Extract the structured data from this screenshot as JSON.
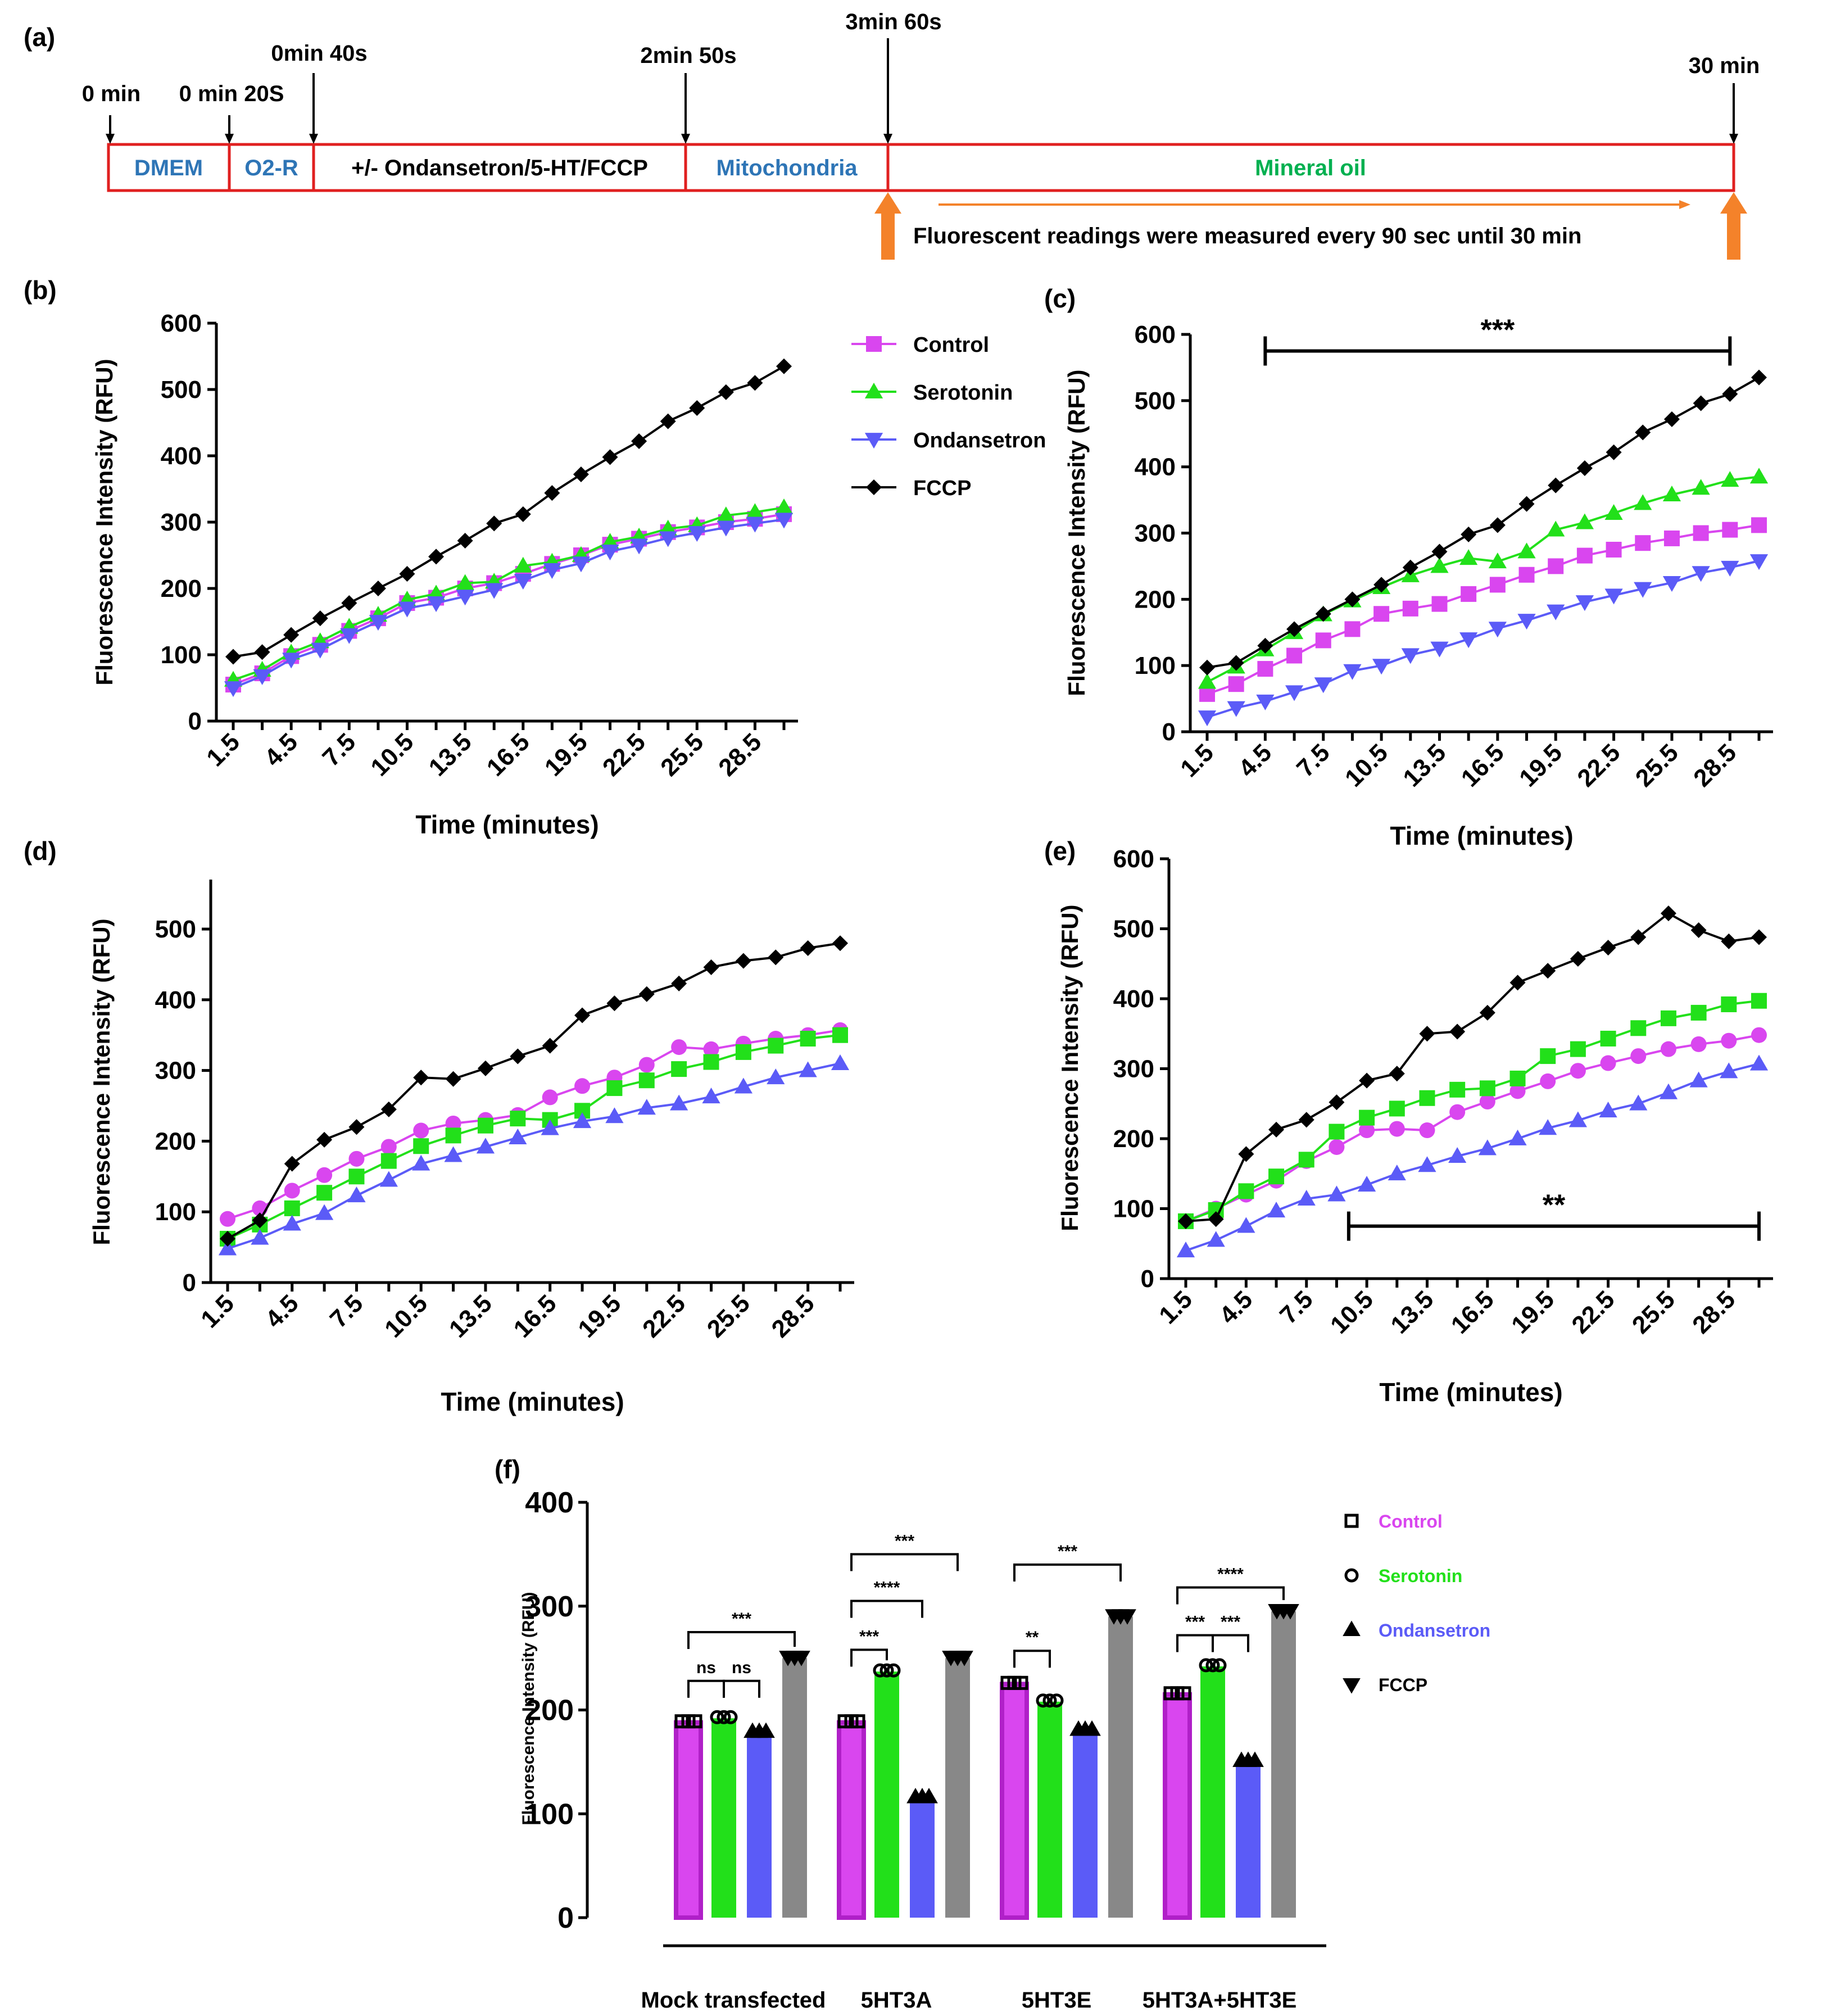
{
  "panel_labels": [
    "(a)",
    "(b)",
    "(c)",
    "(d)",
    "(e)",
    "(f)"
  ],
  "timeline": {
    "markers": [
      {
        "label": "0 min"
      },
      {
        "label": "0 min 20S"
      },
      {
        "label": "0min 40s"
      },
      {
        "label": "2min 50s"
      },
      {
        "label": "3min 60s"
      },
      {
        "label": "30 min"
      }
    ],
    "segments": [
      {
        "label": "DMEM",
        "color": "#2E75B6"
      },
      {
        "label": "O2-R",
        "color": "#2E75B6"
      },
      {
        "label": "+/- Ondansetron/5-HT/FCCP",
        "color": "#000000"
      },
      {
        "label": "Mitochondria",
        "color": "#2E75B6"
      },
      {
        "label": "Mineral oil",
        "color": "#00B050"
      }
    ],
    "note": "Fluorescent readings were measured every 90 sec until 30 min",
    "box_color": "#E02020",
    "arrow_color": "#F4822A"
  },
  "legend_bcde": {
    "items": [
      {
        "name": "Control",
        "color": "#D946EF",
        "marker": "square"
      },
      {
        "name": "Serotonin",
        "color": "#22E01A",
        "marker": "triangle"
      },
      {
        "name": "Ondansetron",
        "color": "#5B5BF7",
        "marker": "triangle-down"
      },
      {
        "name": "FCCP",
        "color": "#000000",
        "marker": "diamond"
      }
    ]
  },
  "legend_f": {
    "items": [
      {
        "name": "Control",
        "color": "#D946EF",
        "marker": "square"
      },
      {
        "name": "Serotonin",
        "color": "#22E01A",
        "marker": "circle"
      },
      {
        "name": "Ondansetron",
        "color": "#5B5BF7",
        "marker": "triangle"
      },
      {
        "name": "FCCP",
        "color": "#000000",
        "marker": "triangle-down"
      }
    ]
  },
  "chart_data": [
    {
      "panel": "(b)",
      "type": "line",
      "xlabel": "Time (minutes)",
      "ylabel": "Fluorescence Intensity (RFU)",
      "ylim": [
        0,
        600
      ],
      "yticks": [
        0,
        100,
        200,
        300,
        400,
        500,
        600
      ],
      "xtick_labels": [
        "1.5",
        "4.5",
        "7.5",
        "10.5",
        "13.5",
        "16.5",
        "19.5",
        "22.5",
        "25.5",
        "28.5"
      ],
      "x": [
        1.5,
        3,
        4.5,
        6,
        7.5,
        9,
        10.5,
        12,
        13.5,
        15,
        16.5,
        18,
        19.5,
        21,
        22.5,
        24,
        25.5,
        27,
        28.5,
        30
      ],
      "series": [
        {
          "name": "Control",
          "color": "#D946EF",
          "marker": "square",
          "values": [
            55,
            72,
            98,
            115,
            136,
            155,
            178,
            186,
            200,
            208,
            222,
            237,
            250,
            266,
            275,
            285,
            292,
            300,
            305,
            312
          ]
        },
        {
          "name": "Serotonin",
          "color": "#22E01A",
          "marker": "triangle",
          "values": [
            62,
            77,
            103,
            120,
            142,
            160,
            183,
            192,
            208,
            210,
            234,
            240,
            250,
            270,
            278,
            290,
            295,
            310,
            315,
            322
          ]
        },
        {
          "name": "Ondansetron",
          "color": "#5B5BF7",
          "marker": "triangle-down",
          "values": [
            50,
            68,
            93,
            108,
            130,
            150,
            170,
            178,
            188,
            198,
            212,
            228,
            238,
            256,
            265,
            276,
            284,
            292,
            298,
            304
          ]
        },
        {
          "name": "FCCP",
          "color": "#000000",
          "marker": "diamond",
          "values": [
            97,
            104,
            130,
            155,
            178,
            200,
            222,
            248,
            272,
            298,
            312,
            344,
            372,
            398,
            422,
            452,
            472,
            496,
            510,
            535
          ]
        }
      ]
    },
    {
      "panel": "(c)",
      "type": "line",
      "xlabel": "Time (minutes)",
      "ylabel": "Fluorescence Intensity (RFU)",
      "ylim": [
        0,
        600
      ],
      "yticks": [
        0,
        100,
        200,
        300,
        400,
        500,
        600
      ],
      "xtick_labels": [
        "1.5",
        "4.5",
        "7.5",
        "10.5",
        "13.5",
        "16.5",
        "19.5",
        "22.5",
        "25.5",
        "28.5"
      ],
      "x": [
        1.5,
        3,
        4.5,
        6,
        7.5,
        9,
        10.5,
        12,
        13.5,
        15,
        16.5,
        18,
        19.5,
        21,
        22.5,
        24,
        25.5,
        27,
        28.5,
        30
      ],
      "significance": {
        "label": "***",
        "from": 4.5,
        "to": 28.5,
        "y": 575
      },
      "series": [
        {
          "name": "Control",
          "color": "#D946EF",
          "marker": "square",
          "values": [
            57,
            72,
            95,
            115,
            138,
            155,
            178,
            186,
            193,
            208,
            222,
            237,
            250,
            266,
            275,
            285,
            292,
            300,
            305,
            312
          ]
        },
        {
          "name": "Serotonin",
          "color": "#22E01A",
          "marker": "triangle",
          "values": [
            75,
            98,
            124,
            150,
            177,
            198,
            218,
            236,
            250,
            262,
            257,
            272,
            305,
            316,
            330,
            345,
            358,
            368,
            380,
            385
          ]
        },
        {
          "name": "Ondansetron",
          "color": "#5B5BF7",
          "marker": "triangle-down",
          "values": [
            22,
            36,
            46,
            60,
            72,
            92,
            100,
            116,
            126,
            140,
            156,
            168,
            182,
            196,
            206,
            216,
            225,
            240,
            248,
            258
          ]
        },
        {
          "name": "FCCP",
          "color": "#000000",
          "marker": "diamond",
          "values": [
            97,
            104,
            130,
            155,
            178,
            200,
            222,
            248,
            272,
            298,
            312,
            344,
            372,
            398,
            422,
            452,
            472,
            496,
            510,
            535
          ]
        }
      ]
    },
    {
      "panel": "(d)",
      "type": "line",
      "xlabel": "Time (minutes)",
      "ylabel": "Fluorescence Intensity (RFU)",
      "ylim": [
        0,
        570
      ],
      "yticks": [
        0,
        100,
        200,
        300,
        400,
        500
      ],
      "xtick_labels": [
        "1.5",
        "4.5",
        "7.5",
        "10.5",
        "13.5",
        "16.5",
        "19.5",
        "22.5",
        "25.5",
        "28.5"
      ],
      "x": [
        1.5,
        3,
        4.5,
        6,
        7.5,
        9,
        10.5,
        12,
        13.5,
        15,
        16.5,
        18,
        19.5,
        21,
        22.5,
        24,
        25.5,
        27,
        28.5,
        30
      ],
      "series": [
        {
          "name": "Control",
          "color": "#D946EF",
          "marker": "circle",
          "values": [
            90,
            105,
            130,
            152,
            175,
            192,
            215,
            225,
            230,
            237,
            262,
            278,
            290,
            308,
            333,
            330,
            338,
            345,
            350,
            357
          ]
        },
        {
          "name": "Serotonin",
          "color": "#22E01A",
          "marker": "square",
          "values": [
            62,
            82,
            105,
            127,
            150,
            172,
            193,
            208,
            222,
            232,
            230,
            243,
            275,
            286,
            302,
            312,
            326,
            335,
            345,
            350
          ]
        },
        {
          "name": "Ondansetron",
          "color": "#5B5BF7",
          "marker": "triangle",
          "values": [
            48,
            63,
            83,
            98,
            123,
            145,
            168,
            180,
            192,
            205,
            218,
            228,
            235,
            247,
            253,
            263,
            277,
            290,
            300,
            310
          ]
        },
        {
          "name": "FCCP",
          "color": "#000000",
          "marker": "diamond",
          "values": [
            62,
            88,
            168,
            202,
            220,
            245,
            290,
            288,
            303,
            320,
            335,
            378,
            395,
            408,
            423,
            446,
            455,
            460,
            473,
            480
          ]
        }
      ]
    },
    {
      "panel": "(e)",
      "type": "line",
      "xlabel": "Time (minutes)",
      "ylabel": "Fluorescence Intensity (RFU)",
      "ylim": [
        0,
        600
      ],
      "yticks": [
        0,
        100,
        200,
        300,
        400,
        500,
        600
      ],
      "xtick_labels": [
        "1.5",
        "4.5",
        "7.5",
        "10.5",
        "13.5",
        "16.5",
        "19.5",
        "22.5",
        "25.5",
        "28.5"
      ],
      "x": [
        1.5,
        3,
        4.5,
        6,
        7.5,
        9,
        10.5,
        12,
        13.5,
        15,
        16.5,
        18,
        19.5,
        21,
        22.5,
        24,
        25.5,
        27,
        28.5,
        30
      ],
      "significance": {
        "label": "**",
        "from": 9.6,
        "to": 30,
        "y": 75
      },
      "series": [
        {
          "name": "Control",
          "color": "#D946EF",
          "marker": "circle",
          "values": [
            82,
            100,
            120,
            140,
            168,
            188,
            212,
            214,
            212,
            238,
            253,
            268,
            282,
            297,
            308,
            318,
            328,
            335,
            340,
            348
          ]
        },
        {
          "name": "Serotonin",
          "color": "#22E01A",
          "marker": "square",
          "values": [
            82,
            98,
            125,
            146,
            170,
            210,
            230,
            243,
            258,
            270,
            272,
            286,
            318,
            328,
            343,
            358,
            372,
            380,
            392,
            397
          ]
        },
        {
          "name": "Ondansetron",
          "color": "#5B5BF7",
          "marker": "triangle",
          "values": [
            40,
            55,
            75,
            97,
            114,
            120,
            134,
            150,
            162,
            175,
            186,
            200,
            215,
            226,
            240,
            250,
            266,
            283,
            296,
            307
          ]
        },
        {
          "name": "FCCP",
          "color": "#000000",
          "marker": "diamond",
          "values": [
            82,
            85,
            178,
            213,
            227,
            252,
            283,
            293,
            350,
            353,
            380,
            423,
            440,
            457,
            473,
            488,
            522,
            498,
            482,
            488
          ]
        }
      ]
    },
    {
      "panel": "(f)",
      "type": "bar",
      "ylabel": "Fluorescence Intensity (RFU)",
      "ylim": [
        0,
        400
      ],
      "yticks": [
        0,
        100,
        200,
        300,
        400
      ],
      "categories": [
        "Mock transfected",
        "5HT3A",
        "5HT3E",
        "5HT3A+5HT3E"
      ],
      "series": [
        {
          "name": "Control",
          "color": "#D946EF",
          "values": [
            188,
            188,
            225,
            215
          ]
        },
        {
          "name": "Serotonin",
          "color": "#22E01A",
          "values": [
            192,
            237,
            208,
            242
          ]
        },
        {
          "name": "Ondansetron",
          "color": "#5B5BF7",
          "values": [
            178,
            115,
            180,
            150
          ]
        },
        {
          "name": "FCCP",
          "color": "#888888",
          "values": [
            250,
            250,
            290,
            295
          ]
        }
      ],
      "significance": [
        {
          "group": 0,
          "from": 0,
          "to": 1,
          "label": "ns",
          "y": 228
        },
        {
          "group": 0,
          "from": 1,
          "to": 2,
          "label": "ns",
          "y": 228
        },
        {
          "group": 0,
          "from": 0,
          "to": 3,
          "label": "***",
          "y": 275
        },
        {
          "group": 1,
          "from": 0,
          "to": 1,
          "label": "***",
          "y": 258
        },
        {
          "group": 1,
          "from": 0,
          "to": 2,
          "label": "****",
          "y": 305
        },
        {
          "group": 1,
          "from": 0,
          "to": 3,
          "label": "***",
          "y": 350
        },
        {
          "group": 2,
          "from": 0,
          "to": 1,
          "label": "**",
          "y": 257
        },
        {
          "group": 2,
          "from": 0,
          "to": 3,
          "label": "***",
          "y": 340
        },
        {
          "group": 3,
          "from": 0,
          "to": 1,
          "label": "***",
          "y": 272
        },
        {
          "group": 3,
          "from": 1,
          "to": 2,
          "label": "***",
          "y": 272
        },
        {
          "group": 3,
          "from": 0,
          "to": 3,
          "label": "****",
          "y": 318
        }
      ]
    }
  ]
}
